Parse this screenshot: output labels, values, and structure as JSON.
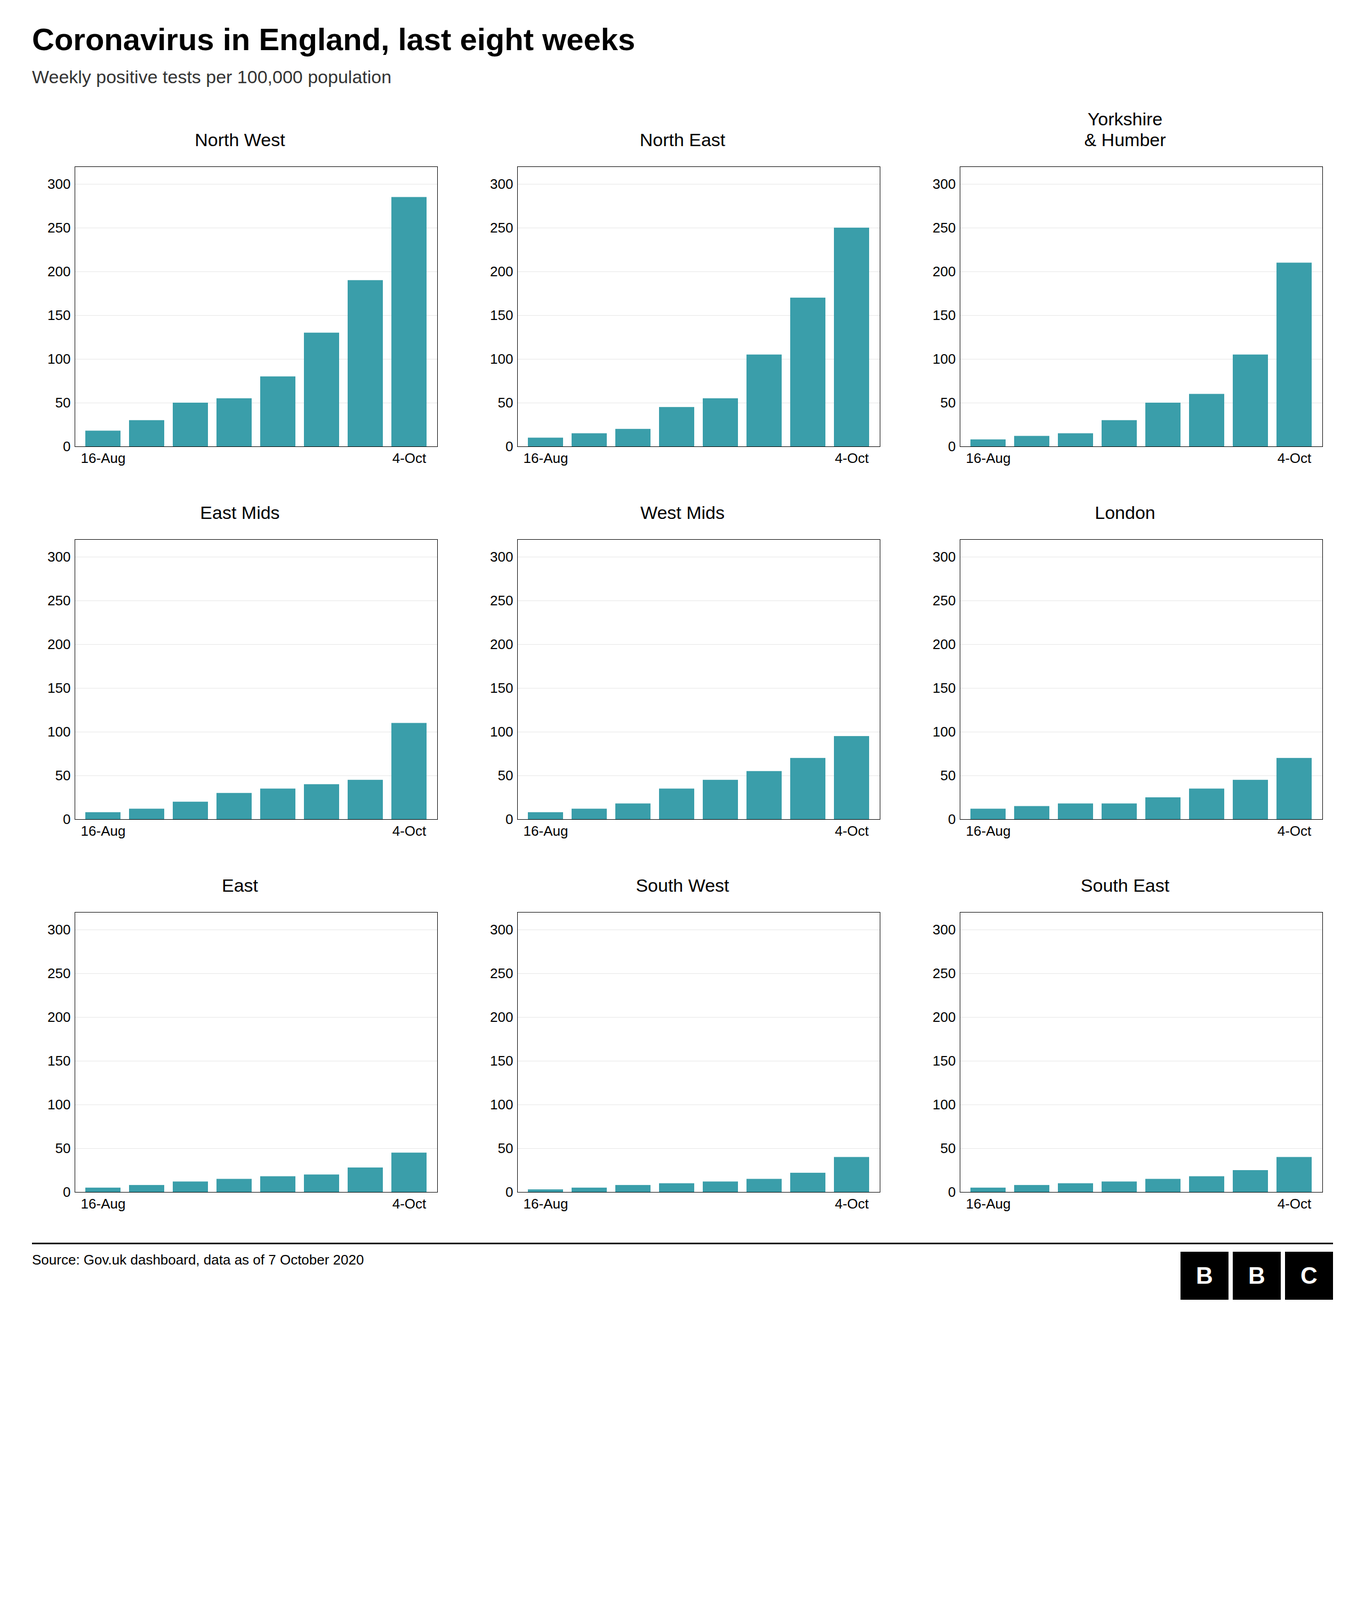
{
  "title": "Coronavirus in England, last eight weeks",
  "subtitle": "Weekly positive tests per 100,000 population",
  "source": "Source: Gov.uk dashboard, data as of 7 October 2020",
  "annotations": [
    "BBC"
  ],
  "chart_data": [
    {
      "type": "bar",
      "title": "North West",
      "categories": [
        "16-Aug",
        null,
        null,
        null,
        null,
        null,
        null,
        "4-Oct"
      ],
      "values": [
        18,
        30,
        50,
        55,
        80,
        130,
        190,
        285
      ],
      "color": "#3a9eaa",
      "ylim": [
        0,
        320
      ],
      "yticks": [
        0,
        50,
        100,
        150,
        200,
        250,
        300
      ],
      "grid": true
    },
    {
      "type": "bar",
      "title": "North East",
      "categories": [
        "16-Aug",
        null,
        null,
        null,
        null,
        null,
        null,
        "4-Oct"
      ],
      "values": [
        10,
        15,
        20,
        45,
        55,
        105,
        170,
        250
      ],
      "color": "#3a9eaa",
      "ylim": [
        0,
        320
      ],
      "yticks": [
        0,
        50,
        100,
        150,
        200,
        250,
        300
      ],
      "grid": true
    },
    {
      "type": "bar",
      "title": "Yorkshire\n& Humber",
      "categories": [
        "16-Aug",
        null,
        null,
        null,
        null,
        null,
        null,
        "4-Oct"
      ],
      "values": [
        8,
        12,
        15,
        30,
        50,
        60,
        105,
        210
      ],
      "color": "#3a9eaa",
      "ylim": [
        0,
        320
      ],
      "yticks": [
        0,
        50,
        100,
        150,
        200,
        250,
        300
      ],
      "grid": true
    },
    {
      "type": "bar",
      "title": "East Mids",
      "categories": [
        "16-Aug",
        null,
        null,
        null,
        null,
        null,
        null,
        "4-Oct"
      ],
      "values": [
        8,
        12,
        20,
        30,
        35,
        40,
        45,
        110
      ],
      "color": "#3a9eaa",
      "ylim": [
        0,
        320
      ],
      "yticks": [
        0,
        50,
        100,
        150,
        200,
        250,
        300
      ],
      "grid": true
    },
    {
      "type": "bar",
      "title": "West Mids",
      "categories": [
        "16-Aug",
        null,
        null,
        null,
        null,
        null,
        null,
        "4-Oct"
      ],
      "values": [
        8,
        12,
        18,
        35,
        45,
        55,
        70,
        95
      ],
      "color": "#3a9eaa",
      "ylim": [
        0,
        320
      ],
      "yticks": [
        0,
        50,
        100,
        150,
        200,
        250,
        300
      ],
      "grid": true
    },
    {
      "type": "bar",
      "title": "London",
      "categories": [
        "16-Aug",
        null,
        null,
        null,
        null,
        null,
        null,
        "4-Oct"
      ],
      "values": [
        12,
        15,
        18,
        18,
        25,
        35,
        45,
        70
      ],
      "color": "#3a9eaa",
      "ylim": [
        0,
        320
      ],
      "yticks": [
        0,
        50,
        100,
        150,
        200,
        250,
        300
      ],
      "grid": true
    },
    {
      "type": "bar",
      "title": "East",
      "categories": [
        "16-Aug",
        null,
        null,
        null,
        null,
        null,
        null,
        "4-Oct"
      ],
      "values": [
        5,
        8,
        12,
        15,
        18,
        20,
        28,
        45
      ],
      "color": "#3a9eaa",
      "ylim": [
        0,
        320
      ],
      "yticks": [
        0,
        50,
        100,
        150,
        200,
        250,
        300
      ],
      "grid": true
    },
    {
      "type": "bar",
      "title": "South West",
      "categories": [
        "16-Aug",
        null,
        null,
        null,
        null,
        null,
        null,
        "4-Oct"
      ],
      "values": [
        3,
        5,
        8,
        10,
        12,
        15,
        22,
        40
      ],
      "color": "#3a9eaa",
      "ylim": [
        0,
        320
      ],
      "yticks": [
        0,
        50,
        100,
        150,
        200,
        250,
        300
      ],
      "grid": true
    },
    {
      "type": "bar",
      "title": "South East",
      "categories": [
        "16-Aug",
        null,
        null,
        null,
        null,
        null,
        null,
        "4-Oct"
      ],
      "values": [
        5,
        8,
        10,
        12,
        15,
        18,
        25,
        40
      ],
      "color": "#3a9eaa",
      "ylim": [
        0,
        320
      ],
      "yticks": [
        0,
        50,
        100,
        150,
        200,
        250,
        300
      ],
      "grid": true
    }
  ]
}
